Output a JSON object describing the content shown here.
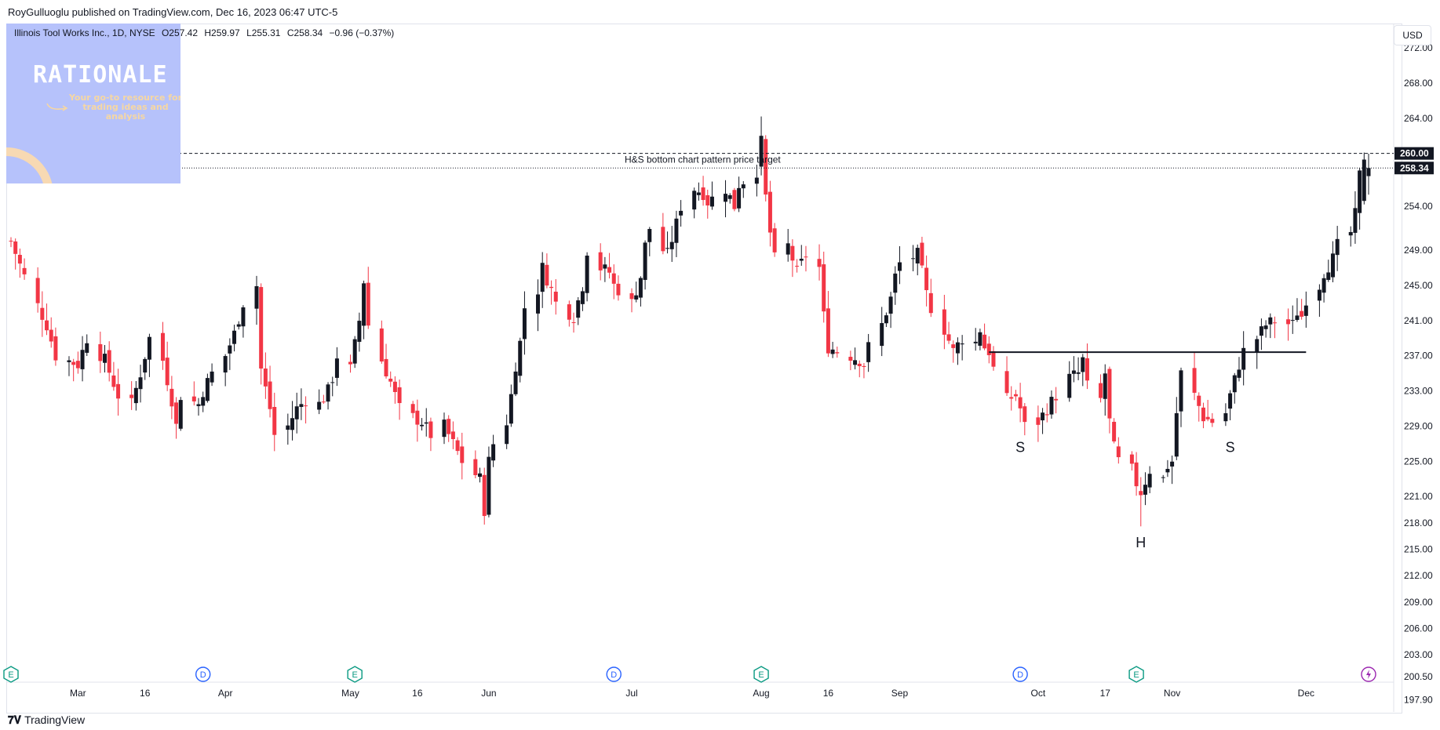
{
  "header": {
    "attribution": "RoyGulluoglu published on TradingView.com, Dec 16, 2023 06:47 UTC-5"
  },
  "legend": {
    "symbol": "Illinois Tool Works Inc., 1D, NYSE",
    "open": "O257.42",
    "high": "H259.97",
    "low": "L255.31",
    "close": "C258.34",
    "change": "−0.96 (−0.37%)"
  },
  "branding": {
    "title": "RATIONALE",
    "tagline": "Your go-to resource for trading ideas and analysis"
  },
  "currency_button": "USD",
  "footer": {
    "logo_text": "TradingView"
  },
  "colors": {
    "up": "#131722",
    "down": "#f23645",
    "target_label_bg": "#131722",
    "price_label_bg": "#131722"
  },
  "chart_data": {
    "type": "candlestick",
    "title": "",
    "ylim": [
      196.5,
      274.5
    ],
    "y_ticks": [
      "272.00",
      "268.00",
      "264.00",
      "260.00",
      "254.00",
      "249.00",
      "245.00",
      "241.00",
      "237.00",
      "233.00",
      "229.00",
      "225.00",
      "221.00",
      "218.00",
      "215.00",
      "212.00",
      "209.00",
      "206.00",
      "203.00",
      "200.50",
      "197.90"
    ],
    "y_tick_values": [
      272,
      268,
      264,
      260,
      254,
      249,
      245,
      241,
      237,
      233,
      229,
      225,
      221,
      218,
      215,
      212,
      209,
      206,
      203,
      200.5,
      197.9
    ],
    "x_labels": [
      {
        "label": "Mar",
        "date": "2023-03-01"
      },
      {
        "label": "16",
        "date": "2023-03-16"
      },
      {
        "label": "Apr",
        "date": "2023-04-03"
      },
      {
        "label": "May",
        "date": "2023-05-01"
      },
      {
        "label": "16",
        "date": "2023-05-16"
      },
      {
        "label": "Jun",
        "date": "2023-06-01"
      },
      {
        "label": "Jul",
        "date": "2023-07-03"
      },
      {
        "label": "Aug",
        "date": "2023-08-01"
      },
      {
        "label": "16",
        "date": "2023-08-16"
      },
      {
        "label": "Sep",
        "date": "2023-09-01"
      },
      {
        "label": "Oct",
        "date": "2023-10-02"
      },
      {
        "label": "17",
        "date": "2023-10-17"
      },
      {
        "label": "Nov",
        "date": "2023-11-01"
      },
      {
        "label": "Dec",
        "date": "2023-12-01"
      }
    ],
    "target_line": {
      "value": 260.0,
      "label": "H&S bottom chart pattern price target",
      "price_tag": "260.00"
    },
    "last_price": {
      "value": 258.34,
      "price_tag": "258.34"
    },
    "neckline": {
      "value": 237.4,
      "start": "2023-09-21",
      "end": "2023-12-01"
    },
    "pattern_labels": [
      {
        "text": "S",
        "date": "2023-09-28",
        "value": 228.0
      },
      {
        "text": "H",
        "date": "2023-10-25",
        "value": 217.2
      },
      {
        "text": "S",
        "date": "2023-11-14",
        "value": 228.0
      }
    ],
    "event_markers": [
      {
        "type": "E",
        "date": "2023-02-14"
      },
      {
        "type": "D",
        "date": "2023-03-29"
      },
      {
        "type": "E",
        "date": "2023-05-02"
      },
      {
        "type": "D",
        "date": "2023-06-29"
      },
      {
        "type": "E",
        "date": "2023-08-01"
      },
      {
        "type": "D",
        "date": "2023-09-28"
      },
      {
        "type": "E",
        "date": "2023-10-24"
      },
      {
        "type": "lightning",
        "date": "2023-12-15"
      }
    ],
    "anchors": [
      [
        "2023-02-14",
        250.0
      ],
      [
        "2023-02-17",
        246.0
      ],
      [
        "2023-02-22",
        240.5
      ],
      [
        "2023-02-24",
        237.0
      ],
      [
        "2023-03-01",
        236.0
      ],
      [
        "2023-03-03",
        239.0
      ],
      [
        "2023-03-07",
        236.5
      ],
      [
        "2023-03-10",
        232.5
      ],
      [
        "2023-03-13",
        231.5
      ],
      [
        "2023-03-15",
        235.0
      ],
      [
        "2023-03-17",
        239.0
      ],
      [
        "2023-03-20",
        236.5
      ],
      [
        "2023-03-22",
        232.0
      ],
      [
        "2023-03-23",
        229.0
      ],
      [
        "2023-03-24",
        232.5
      ],
      [
        "2023-03-28",
        231.5
      ],
      [
        "2023-03-29",
        233.0
      ],
      [
        "2023-03-31",
        235.0
      ],
      [
        "2023-04-03",
        237.0
      ],
      [
        "2023-04-05",
        239.5
      ],
      [
        "2023-04-07",
        243.0
      ],
      [
        "2023-04-10",
        245.0
      ],
      [
        "2023-04-11",
        235.5
      ],
      [
        "2023-04-13",
        231.0
      ],
      [
        "2023-04-14",
        228.0
      ],
      [
        "2023-04-17",
        229.0
      ],
      [
        "2023-04-19",
        231.0
      ],
      [
        "2023-04-21",
        232.0
      ],
      [
        "2023-04-24",
        231.5
      ],
      [
        "2023-04-26",
        233.0
      ],
      [
        "2023-04-27",
        234.5
      ],
      [
        "2023-04-28",
        237.0
      ],
      [
        "2023-05-01",
        235.5
      ],
      [
        "2023-05-03",
        241.0
      ],
      [
        "2023-05-04",
        245.5
      ],
      [
        "2023-05-05",
        240.5
      ],
      [
        "2023-05-08",
        236.5
      ],
      [
        "2023-05-10",
        234.0
      ],
      [
        "2023-05-12",
        231.0
      ],
      [
        "2023-05-15",
        230.0
      ],
      [
        "2023-05-17",
        229.5
      ],
      [
        "2023-05-19",
        228.0
      ],
      [
        "2023-05-22",
        229.0
      ],
      [
        "2023-05-24",
        227.0
      ],
      [
        "2023-05-26",
        225.0
      ],
      [
        "2023-05-30",
        223.0
      ],
      [
        "2023-05-31",
        219.5
      ],
      [
        "2023-06-01",
        225.0
      ],
      [
        "2023-06-02",
        227.0
      ],
      [
        "2023-06-05",
        229.5
      ],
      [
        "2023-06-06",
        232.5
      ],
      [
        "2023-06-07",
        236.0
      ],
      [
        "2023-06-08",
        238.5
      ],
      [
        "2023-06-09",
        242.5
      ],
      [
        "2023-06-12",
        244.5
      ],
      [
        "2023-06-13",
        247.0
      ],
      [
        "2023-06-15",
        244.5
      ],
      [
        "2023-06-16",
        243.0
      ],
      [
        "2023-06-20",
        241.5
      ],
      [
        "2023-06-22",
        245.0
      ],
      [
        "2023-06-23",
        249.0
      ],
      [
        "2023-06-26",
        247.0
      ],
      [
        "2023-06-28",
        246.5
      ],
      [
        "2023-06-29",
        245.0
      ],
      [
        "2023-06-30",
        244.5
      ],
      [
        "2023-07-03",
        243.0
      ],
      [
        "2023-07-05",
        246.0
      ],
      [
        "2023-07-06",
        249.5
      ],
      [
        "2023-07-07",
        251.5
      ],
      [
        "2023-07-10",
        249.0
      ],
      [
        "2023-07-11",
        248.5
      ],
      [
        "2023-07-13",
        252.0
      ],
      [
        "2023-07-14",
        254.0
      ],
      [
        "2023-07-17",
        256.0
      ],
      [
        "2023-07-19",
        255.5
      ],
      [
        "2023-07-20",
        254.5
      ],
      [
        "2023-07-24",
        256.0
      ],
      [
        "2023-07-26",
        254.0
      ],
      [
        "2023-07-27",
        256.5
      ],
      [
        "2023-07-31",
        258.0
      ],
      [
        "2023-08-01",
        261.5
      ],
      [
        "2023-08-02",
        255.0
      ],
      [
        "2023-08-03",
        251.0
      ],
      [
        "2023-08-04",
        248.0
      ],
      [
        "2023-08-07",
        249.5
      ],
      [
        "2023-08-09",
        246.5
      ],
      [
        "2023-08-11",
        248.5
      ],
      [
        "2023-08-14",
        247.0
      ],
      [
        "2023-08-15",
        241.5
      ],
      [
        "2023-08-16",
        238.0
      ],
      [
        "2023-08-18",
        237.5
      ],
      [
        "2023-08-21",
        237.0
      ],
      [
        "2023-08-23",
        236.5
      ],
      [
        "2023-08-24",
        236.0
      ],
      [
        "2023-08-25",
        238.0
      ],
      [
        "2023-08-28",
        240.5
      ],
      [
        "2023-08-30",
        243.5
      ],
      [
        "2023-08-31",
        246.0
      ],
      [
        "2023-09-01",
        247.5
      ],
      [
        "2023-09-05",
        248.5
      ],
      [
        "2023-09-06",
        246.5
      ],
      [
        "2023-09-07",
        244.0
      ],
      [
        "2023-09-08",
        242.5
      ],
      [
        "2023-09-11",
        240.0
      ],
      [
        "2023-09-13",
        237.5
      ],
      [
        "2023-09-15",
        239.0
      ],
      [
        "2023-09-18",
        238.5
      ],
      [
        "2023-09-19",
        240.0
      ],
      [
        "2023-09-20",
        238.0
      ],
      [
        "2023-09-21",
        237.5
      ],
      [
        "2023-09-22",
        235.5
      ],
      [
        "2023-09-25",
        232.0
      ],
      [
        "2023-09-27",
        232.5
      ],
      [
        "2023-09-28",
        231.0
      ],
      [
        "2023-09-29",
        229.0
      ],
      [
        "2023-10-02",
        229.5
      ],
      [
        "2023-10-04",
        231.0
      ],
      [
        "2023-10-06",
        232.5
      ],
      [
        "2023-10-09",
        234.5
      ],
      [
        "2023-10-11",
        235.0
      ],
      [
        "2023-10-12",
        236.5
      ],
      [
        "2023-10-13",
        233.5
      ],
      [
        "2023-10-16",
        232.0
      ],
      [
        "2023-10-17",
        235.0
      ],
      [
        "2023-10-18",
        229.5
      ],
      [
        "2023-10-19",
        226.5
      ],
      [
        "2023-10-20",
        225.0
      ],
      [
        "2023-10-23",
        224.0
      ],
      [
        "2023-10-24",
        222.5
      ],
      [
        "2023-10-25",
        221.5
      ],
      [
        "2023-10-27",
        224.0
      ],
      [
        "2023-10-30",
        223.0
      ],
      [
        "2023-10-31",
        224.5
      ],
      [
        "2023-11-01",
        225.0
      ],
      [
        "2023-11-02",
        230.5
      ],
      [
        "2023-11-03",
        235.0
      ],
      [
        "2023-11-06",
        232.5
      ],
      [
        "2023-11-08",
        230.0
      ],
      [
        "2023-11-10",
        229.5
      ],
      [
        "2023-11-13",
        230.5
      ],
      [
        "2023-11-14",
        232.5
      ],
      [
        "2023-11-16",
        236.0
      ],
      [
        "2023-11-17",
        237.5
      ],
      [
        "2023-11-20",
        239.0
      ],
      [
        "2023-11-22",
        240.5
      ],
      [
        "2023-11-24",
        241.0
      ],
      [
        "2023-11-28",
        240.5
      ],
      [
        "2023-11-29",
        242.0
      ],
      [
        "2023-11-30",
        241.5
      ],
      [
        "2023-12-01",
        243.5
      ],
      [
        "2023-12-04",
        245.0
      ],
      [
        "2023-12-05",
        246.5
      ],
      [
        "2023-12-07",
        248.0
      ],
      [
        "2023-12-08",
        249.5
      ],
      [
        "2023-12-11",
        251.0
      ],
      [
        "2023-12-12",
        253.0
      ],
      [
        "2023-12-13",
        257.5
      ],
      [
        "2023-12-14",
        259.0
      ],
      [
        "2023-12-15",
        258.34
      ]
    ]
  }
}
